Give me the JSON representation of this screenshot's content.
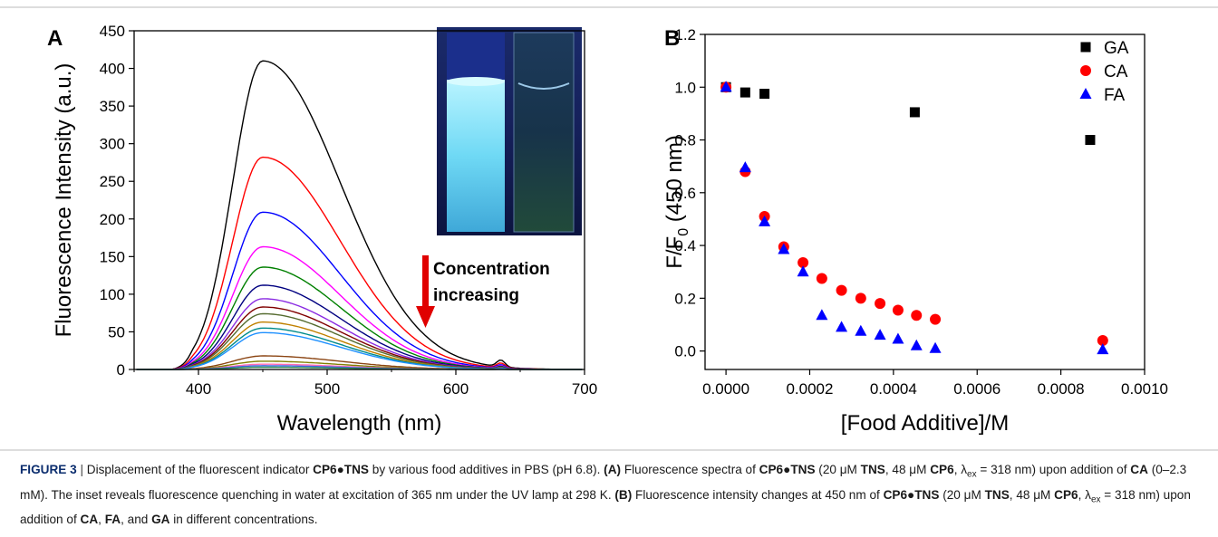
{
  "panel_a": {
    "letter": "A",
    "annotation": [
      "Concentration",
      "increasing"
    ],
    "arrow_color": "#e00000"
  },
  "panel_b": {
    "letter": "B"
  },
  "chart_data": [
    {
      "type": "line",
      "xlabel": "Wavelength (nm)",
      "ylabel": "Fluorescence Intensity (a.u.)",
      "xlim": [
        350,
        700
      ],
      "ylim": [
        0,
        450
      ],
      "xticks": [
        400,
        500,
        600,
        700
      ],
      "yticks": [
        0,
        50,
        100,
        150,
        200,
        250,
        300,
        350,
        400,
        450
      ],
      "peak_nm": 450,
      "series": [
        {
          "peak": 410,
          "color": "#000000"
        },
        {
          "peak": 282,
          "color": "#ff0000"
        },
        {
          "peak": 209,
          "color": "#0000ff"
        },
        {
          "peak": 163,
          "color": "#ff00ff"
        },
        {
          "peak": 136,
          "color": "#008000"
        },
        {
          "peak": 112,
          "color": "#000080"
        },
        {
          "peak": 94,
          "color": "#8a2be2"
        },
        {
          "peak": 83,
          "color": "#800000"
        },
        {
          "peak": 74,
          "color": "#556b2f"
        },
        {
          "peak": 63,
          "color": "#c08000"
        },
        {
          "peak": 55,
          "color": "#008b8b"
        },
        {
          "peak": 49,
          "color": "#1e90ff"
        },
        {
          "peak": 18,
          "color": "#8b4513"
        },
        {
          "peak": 11,
          "color": "#808000"
        },
        {
          "peak": 7,
          "color": "#ff69b4"
        },
        {
          "peak": 5,
          "color": "#4169e1"
        },
        {
          "peak": 3,
          "color": "#2e8b57"
        }
      ]
    },
    {
      "type": "scatter",
      "xlabel": "[Food Additive]/M",
      "ylabel_main": "F/F",
      "ylabel_sub": "0",
      "ylabel_tail": " (450 nm)",
      "xlim": [
        -5e-05,
        0.001
      ],
      "ylim": [
        -0.07,
        1.2
      ],
      "xticks": [
        "0.0000",
        "0.0002",
        "0.0004",
        "0.0006",
        "0.0008",
        "0.0010"
      ],
      "yticks": [
        "0.0",
        "0.2",
        "0.4",
        "0.6",
        "0.8",
        "1.0",
        "1.2"
      ],
      "legend_position": "top-right",
      "series": [
        {
          "name": "GA",
          "marker": "square",
          "color": "#000000",
          "x": [
            0.0,
            4.6e-05,
            9.2e-05,
            0.000451,
            0.00087
          ],
          "y": [
            1.0,
            0.98,
            0.975,
            0.905,
            0.8
          ]
        },
        {
          "name": "CA",
          "marker": "circle",
          "color": "#ff0000",
          "x": [
            0.0,
            4.6e-05,
            9.2e-05,
            0.000138,
            0.000184,
            0.000229,
            0.000276,
            0.000322,
            0.000368,
            0.000411,
            0.000455,
            0.0005,
            0.0009
          ],
          "y": [
            1.0,
            0.68,
            0.51,
            0.395,
            0.335,
            0.275,
            0.23,
            0.2,
            0.18,
            0.155,
            0.135,
            0.12,
            0.04
          ]
        },
        {
          "name": "FA",
          "marker": "triangle",
          "color": "#0000ff",
          "x": [
            0.0,
            4.6e-05,
            9.2e-05,
            0.000138,
            0.000184,
            0.000229,
            0.000276,
            0.000322,
            0.000368,
            0.000411,
            0.000455,
            0.0005,
            0.0009
          ],
          "y": [
            1.0,
            0.695,
            0.49,
            0.385,
            0.3,
            0.135,
            0.09,
            0.075,
            0.06,
            0.045,
            0.02,
            0.01,
            0.005
          ]
        }
      ]
    }
  ],
  "caption": {
    "label": "FIGURE 3",
    "sep": " | ",
    "parts": [
      {
        "t": "Displacement of the fluorescent indicator ",
        "b": false
      },
      {
        "t": "CP6●TNS",
        "b": true
      },
      {
        "t": " by various food additives in PBS (pH 6.8). ",
        "b": false
      },
      {
        "t": "(A)",
        "b": true
      },
      {
        "t": " Fluorescence spectra of ",
        "b": false
      },
      {
        "t": "CP6●TNS",
        "b": true
      },
      {
        "t": " (20 μM ",
        "b": false
      },
      {
        "t": "TNS",
        "b": true
      },
      {
        "t": ", 48 μM ",
        "b": false
      },
      {
        "t": "CP6",
        "b": true
      },
      {
        "t": ", λ",
        "b": false
      },
      {
        "t": "ex",
        "sub": true
      },
      {
        "t": " = 318 nm) upon addition of ",
        "b": false
      },
      {
        "t": "CA",
        "b": true
      },
      {
        "t": " (0–2.3 mM). The inset reveals fluorescence quenching in water at excitation of 365 nm under the UV lamp at 298 K. ",
        "b": false
      },
      {
        "t": "(B)",
        "b": true
      },
      {
        "t": " Fluorescence intensity changes at 450 nm of ",
        "b": false
      },
      {
        "t": "CP6●TNS",
        "b": true
      },
      {
        "t": " (20 μM ",
        "b": false
      },
      {
        "t": "TNS",
        "b": true
      },
      {
        "t": ", 48 μM ",
        "b": false
      },
      {
        "t": "CP6",
        "b": true
      },
      {
        "t": ", λ",
        "b": false
      },
      {
        "t": "ex",
        "sub": true
      },
      {
        "t": " = 318 nm) upon addition of ",
        "b": false
      },
      {
        "t": "CA",
        "b": true
      },
      {
        "t": ", ",
        "b": false
      },
      {
        "t": "FA",
        "b": true
      },
      {
        "t": ", and ",
        "b": false
      },
      {
        "t": "GA",
        "b": true
      },
      {
        "t": " in different concentrations.",
        "b": false
      }
    ]
  }
}
